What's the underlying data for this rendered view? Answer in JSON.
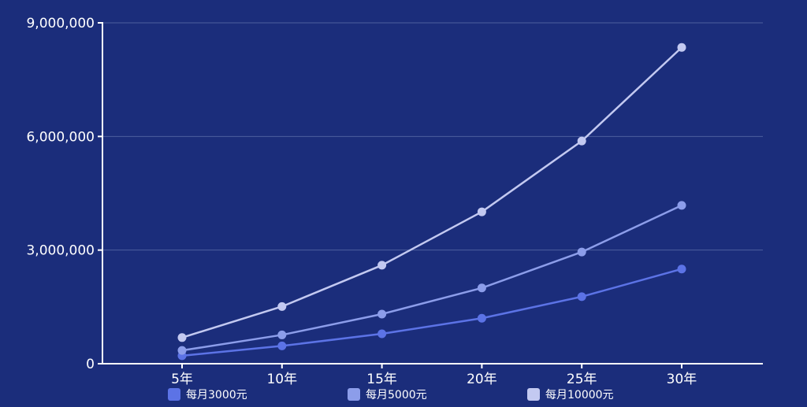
{
  "chart_data": {
    "type": "line",
    "categories": [
      "5年",
      "10年",
      "15年",
      "20年",
      "25年",
      "30年"
    ],
    "ylim": [
      0,
      9000000
    ],
    "yticks": [
      0,
      3000000,
      6000000,
      9000000
    ],
    "ytick_labels": [
      "0",
      "3,000,000",
      "6,000,000",
      "9,000,000"
    ],
    "grid": true,
    "legend_position": "bottom",
    "series": [
      {
        "name": "每月3000元",
        "color": "#5c73e6",
        "values": [
          210000,
          470000,
          790000,
          1200000,
          1770000,
          2500000
        ]
      },
      {
        "name": "每月5000元",
        "color": "#8c9dea",
        "values": [
          350000,
          760000,
          1310000,
          2000000,
          2950000,
          4180000
        ]
      },
      {
        "name": "每月10000元",
        "color": "#c3c9f1",
        "values": [
          690000,
          1510000,
          2600000,
          4010000,
          5880000,
          8350000
        ]
      }
    ]
  }
}
